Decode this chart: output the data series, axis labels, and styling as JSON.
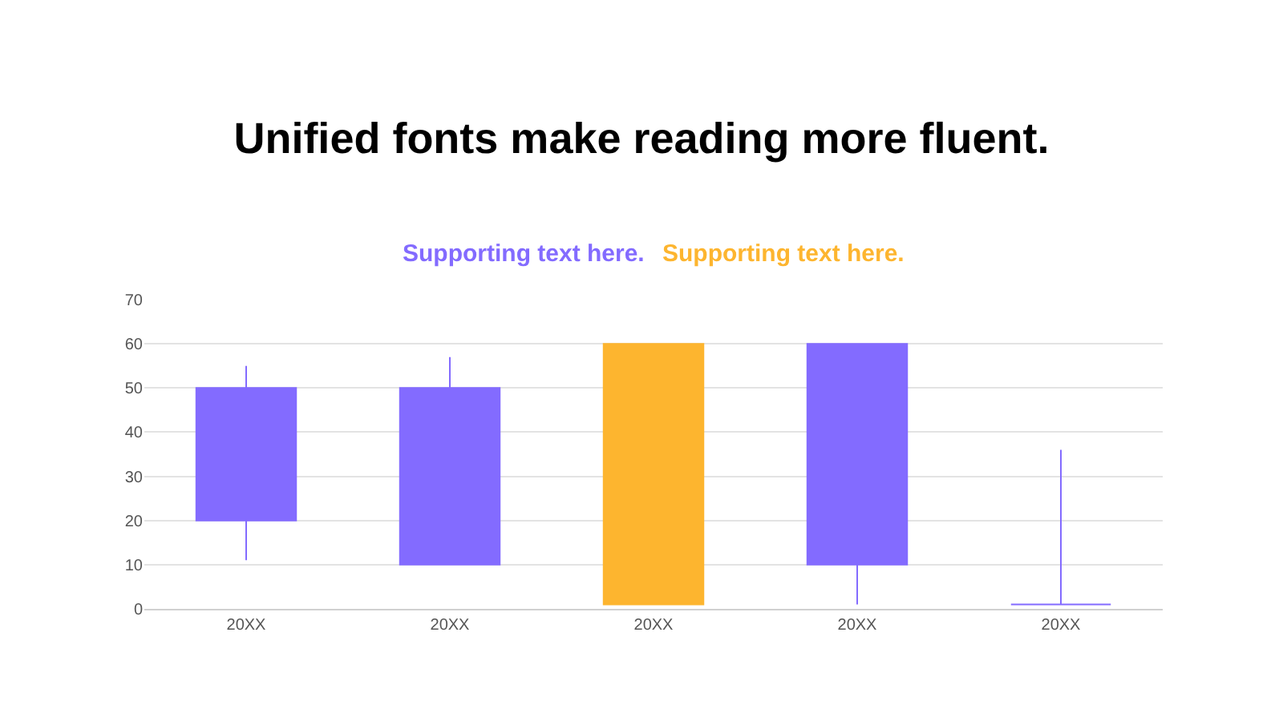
{
  "chart_data": {
    "type": "candlestick",
    "title": "Unified fonts make reading more fluent.",
    "categories": [
      "20XX",
      "20XX",
      "20XX",
      "20XX",
      "20XX"
    ],
    "series": [
      {
        "name": "Supporting text here.",
        "color": "#836bff",
        "ohlc": [
          [
            20,
            55,
            11,
            50
          ],
          [
            10,
            57,
            10,
            50
          ],
          null,
          [
            10,
            60,
            1,
            60
          ],
          [
            1,
            36,
            1,
            1
          ]
        ]
      },
      {
        "name": "Supporting text here.",
        "color": "#fdb52f",
        "ohlc": [
          null,
          null,
          [
            60,
            60,
            1,
            1
          ],
          null,
          null
        ]
      }
    ],
    "ylim": [
      0,
      70
    ],
    "yticks": [
      0,
      10,
      20,
      30,
      40,
      50,
      60,
      70
    ],
    "grid": "y",
    "legend": "top"
  }
}
